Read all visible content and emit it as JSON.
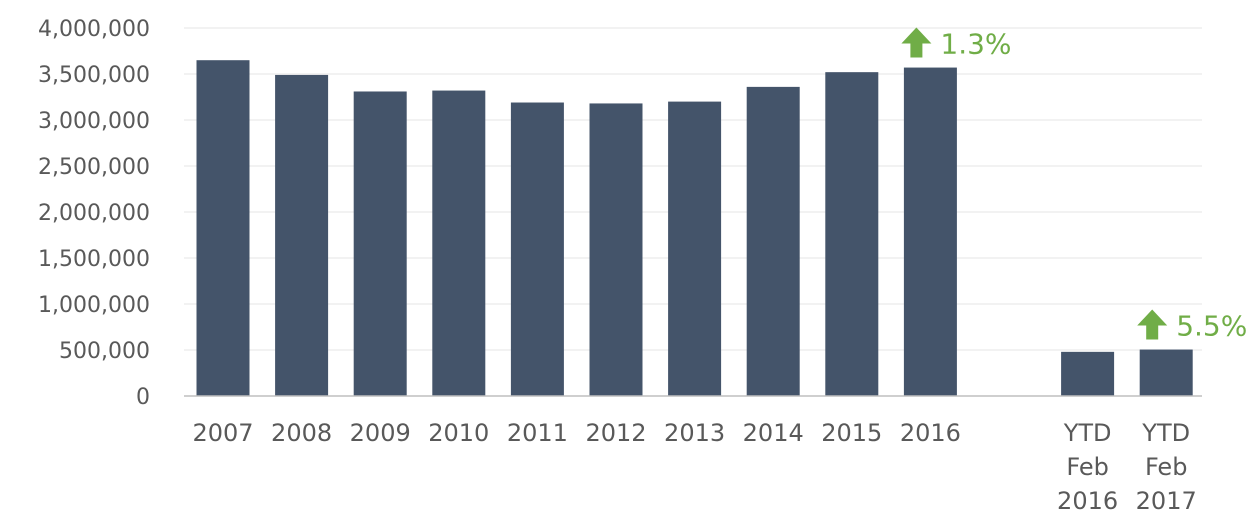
{
  "chart_data": {
    "type": "bar",
    "categories": [
      [
        "2007"
      ],
      [
        "2008"
      ],
      [
        "2009"
      ],
      [
        "2010"
      ],
      [
        "2011"
      ],
      [
        "2012"
      ],
      [
        "2013"
      ],
      [
        "2014"
      ],
      [
        "2015"
      ],
      [
        "2016"
      ],
      [
        "YTD",
        "Feb",
        "2016"
      ],
      [
        "YTD",
        "Feb",
        "2017"
      ]
    ],
    "values": [
      3650000,
      3490000,
      3310000,
      3320000,
      3190000,
      3180000,
      3200000,
      3360000,
      3520000,
      3570000,
      480000,
      505000
    ],
    "ylim": [
      0,
      4000000
    ],
    "yticks": [
      0,
      500000,
      1000000,
      1500000,
      2000000,
      2500000,
      3000000,
      3500000,
      4000000
    ],
    "ytick_labels": [
      "0",
      "500,000",
      "1,000,000",
      "1,500,000",
      "2,000,000",
      "2,500,000",
      "3,000,000",
      "3,500,000",
      "4,000,000"
    ],
    "grid": true,
    "title": "",
    "xlabel": "",
    "ylabel": "",
    "annotations": [
      {
        "text": "1.3%",
        "category_index": 9,
        "icon": "up-arrow-icon"
      },
      {
        "text": "5.5%",
        "category_index": 11,
        "icon": "up-arrow-icon"
      }
    ],
    "colors": {
      "bar": "#44546a",
      "grid": "#e6e6e6",
      "axis": "#bfbfbf",
      "text": "#595959",
      "annotation": "#70ad47"
    }
  }
}
